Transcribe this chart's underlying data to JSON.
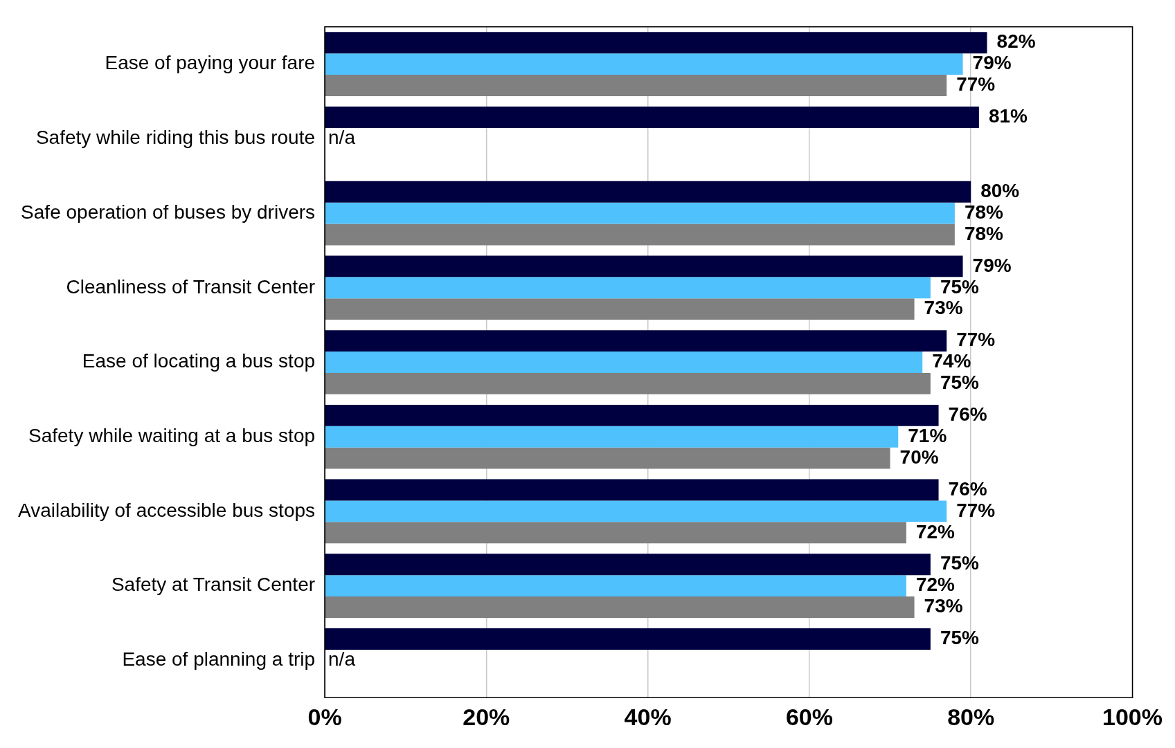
{
  "chart_data": {
    "type": "bar",
    "orientation": "horizontal",
    "categories": [
      "Ease of paying your fare",
      "Safety while riding this bus route",
      "Safe operation of buses by drivers",
      "Cleanliness of Transit Center",
      "Ease of locating a bus stop",
      "Safety while waiting at a bus stop",
      "Availability of accessible bus stops",
      "Safety at Transit Center",
      "Ease of planning a trip"
    ],
    "series": [
      {
        "color": "#000040",
        "values": [
          82,
          81,
          80,
          79,
          77,
          76,
          76,
          75,
          75
        ],
        "value_labels": [
          "82%",
          "81%",
          "80%",
          "79%",
          "77%",
          "76%",
          "76%",
          "75%",
          "75%"
        ]
      },
      {
        "color": "#4fc1fc",
        "values": [
          79,
          null,
          78,
          75,
          74,
          71,
          77,
          72,
          null
        ],
        "value_labels": [
          "79%",
          "n/a",
          "78%",
          "75%",
          "74%",
          "71%",
          "77%",
          "72%",
          "n/a"
        ]
      },
      {
        "color": "#808080",
        "values": [
          77,
          null,
          78,
          73,
          75,
          70,
          72,
          73,
          null
        ],
        "value_labels": [
          "77%",
          null,
          "78%",
          "73%",
          "75%",
          "70%",
          "72%",
          "73%",
          null
        ]
      }
    ],
    "xlim": [
      0,
      100
    ],
    "xticks": [
      {
        "value": 0,
        "label": "0%"
      },
      {
        "value": 20,
        "label": "20%"
      },
      {
        "value": 40,
        "label": "40%"
      },
      {
        "value": 60,
        "label": "60%"
      },
      {
        "value": 80,
        "label": "80%"
      },
      {
        "value": 100,
        "label": "100%"
      }
    ],
    "grid": "x",
    "legend": false
  }
}
